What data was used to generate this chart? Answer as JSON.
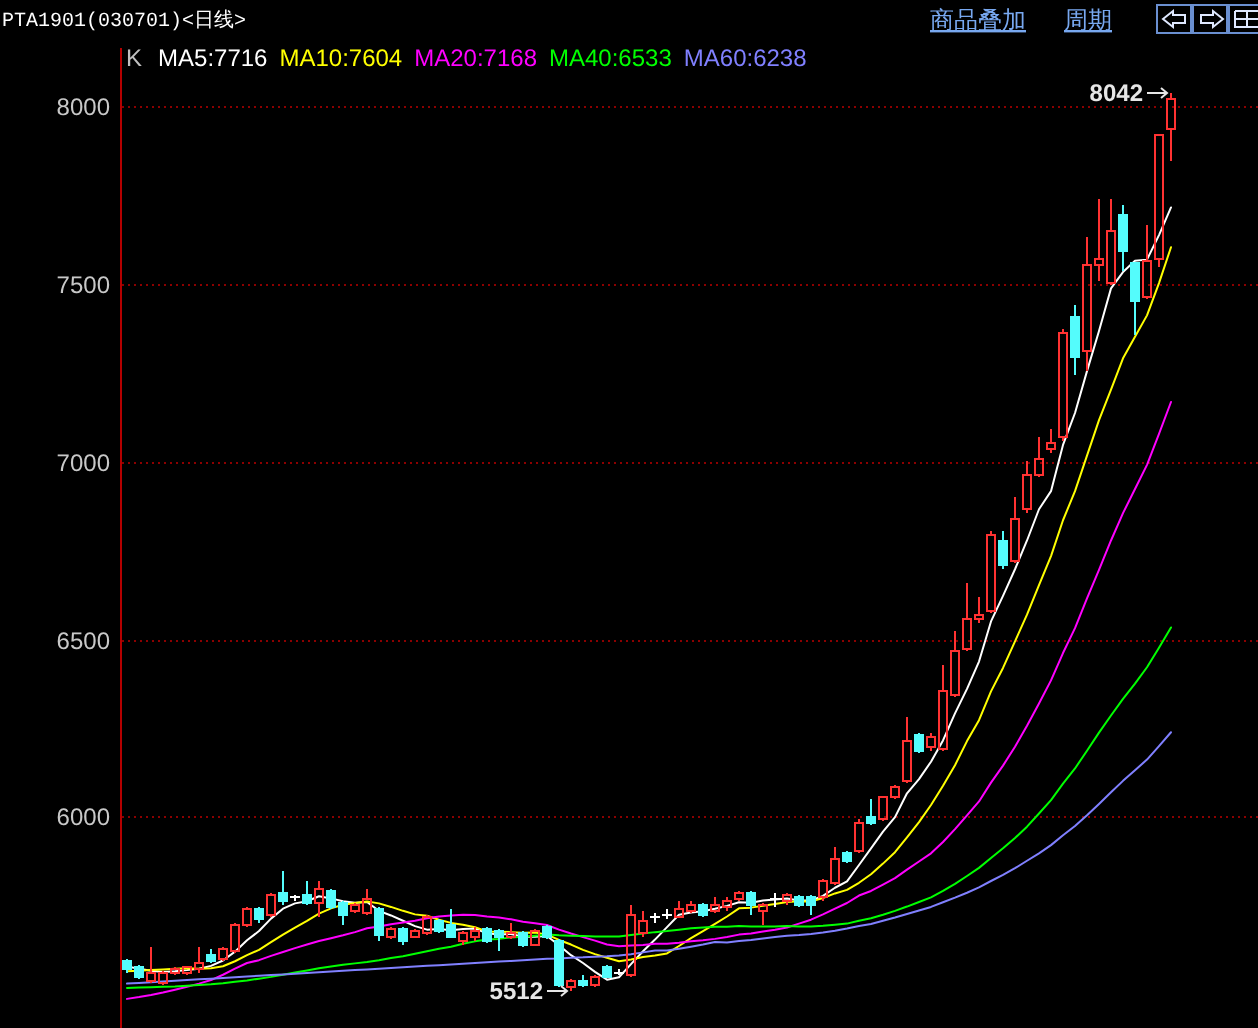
{
  "chart_data": {
    "type": "candlestick",
    "title": "PTA1901(030701)<日线>",
    "legend_title": "K",
    "categories": [
      null,
      null,
      null,
      null,
      null,
      null,
      null,
      null,
      null,
      null,
      null,
      null,
      null,
      null,
      null,
      null,
      null,
      null,
      null,
      null,
      null,
      null,
      null,
      null,
      null,
      null,
      null,
      null,
      null,
      null,
      null,
      null,
      null,
      null,
      null,
      null,
      null,
      null,
      null,
      null,
      null,
      null,
      null,
      null,
      null,
      null,
      null,
      null,
      null,
      null,
      null,
      null,
      null,
      null,
      null,
      null,
      null,
      null,
      null,
      null,
      null,
      null,
      null,
      null,
      null,
      null,
      null,
      null,
      null,
      null,
      null,
      null,
      null,
      null,
      null,
      null,
      null,
      null,
      null,
      null,
      null,
      null,
      null,
      null,
      null,
      null,
      null,
      null
    ],
    "series": [
      {
        "ohlc": [
          [
            5596,
            5600,
            5565,
            5573
          ],
          [
            5577,
            5583,
            5545,
            5549
          ],
          [
            5540,
            5634,
            5536,
            5564
          ],
          [
            5534,
            5568,
            5530,
            5562
          ],
          [
            5562,
            5577,
            5558,
            5573
          ],
          [
            5562,
            5581,
            5555,
            5577
          ],
          [
            5573,
            5634,
            5562,
            5592
          ],
          [
            5615,
            5628,
            5590,
            5596
          ],
          [
            5600,
            5634,
            5596,
            5628
          ],
          [
            5624,
            5705,
            5620,
            5699
          ],
          [
            5699,
            5746,
            5690,
            5741
          ],
          [
            5741,
            5746,
            5705,
            5714
          ],
          [
            5724,
            5789,
            5718,
            5784
          ],
          [
            5789,
            5849,
            5756,
            5765
          ],
          [
            5774,
            5780,
            5767,
            5774
          ],
          [
            5784,
            5821,
            5756,
            5761
          ],
          [
            5761,
            5821,
            5718,
            5797
          ],
          [
            5793,
            5797,
            5741,
            5746
          ],
          [
            5759,
            5765,
            5699,
            5727
          ],
          [
            5737,
            5761,
            5733,
            5756
          ],
          [
            5733,
            5797,
            5727,
            5771
          ],
          [
            5741,
            5746,
            5652,
            5667
          ],
          [
            5662,
            5690,
            5656,
            5684
          ],
          [
            5684,
            5690,
            5643,
            5652
          ],
          [
            5665,
            5684,
            5662,
            5680
          ],
          [
            5677,
            5724,
            5671,
            5718
          ],
          [
            5709,
            5714,
            5677,
            5680
          ],
          [
            5699,
            5741,
            5662,
            5665
          ],
          [
            5652,
            5680,
            5643,
            5677
          ],
          [
            5662,
            5690,
            5655,
            5682
          ],
          [
            5684,
            5690,
            5645,
            5652
          ],
          [
            5680,
            5684,
            5624,
            5662
          ],
          [
            5662,
            5705,
            5656,
            5677
          ],
          [
            5677,
            5680,
            5634,
            5639
          ],
          [
            5643,
            5684,
            5639,
            5680
          ],
          [
            5690,
            5699,
            5656,
            5662
          ],
          [
            5652,
            5656,
            5524,
            5530
          ],
          [
            5521,
            5545,
            5512,
            5540
          ],
          [
            5540,
            5558,
            5524,
            5530
          ],
          [
            5530,
            5558,
            5526,
            5553
          ],
          [
            5581,
            5586,
            5549,
            5553
          ],
          [
            5562,
            5573,
            5555,
            5562
          ],
          [
            5558,
            5752,
            5553,
            5727
          ],
          [
            5677,
            5737,
            5662,
            5709
          ],
          [
            5718,
            5733,
            5705,
            5718
          ],
          [
            5727,
            5741,
            5714,
            5727
          ],
          [
            5722,
            5765,
            5718,
            5741
          ],
          [
            5737,
            5765,
            5733,
            5756
          ],
          [
            5756,
            5761,
            5718,
            5727
          ],
          [
            5737,
            5774,
            5733,
            5756
          ],
          [
            5746,
            5774,
            5737,
            5765
          ],
          [
            5771,
            5793,
            5767,
            5789
          ],
          [
            5789,
            5793,
            5727,
            5752
          ],
          [
            5737,
            5761,
            5699,
            5756
          ],
          [
            5771,
            5789,
            5746,
            5771
          ],
          [
            5765,
            5789,
            5756,
            5784
          ],
          [
            5774,
            5780,
            5746,
            5756
          ],
          [
            5774,
            5780,
            5727,
            5752
          ],
          [
            5774,
            5830,
            5765,
            5821
          ],
          [
            5815,
            5915,
            5810,
            5885
          ],
          [
            5900,
            5905,
            5870,
            5877
          ],
          [
            5906,
            5995,
            5900,
            5986
          ],
          [
            6000,
            6050,
            5982,
            5986
          ],
          [
            5994,
            6060,
            5990,
            6056
          ],
          [
            6056,
            6095,
            6050,
            6088
          ],
          [
            6103,
            6281,
            6100,
            6215
          ],
          [
            6234,
            6240,
            6180,
            6187
          ],
          [
            6200,
            6240,
            6190,
            6230
          ],
          [
            6196,
            6431,
            6190,
            6356
          ],
          [
            6347,
            6525,
            6340,
            6469
          ],
          [
            6478,
            6662,
            6470,
            6557
          ],
          [
            6557,
            6619,
            6550,
            6572
          ],
          [
            6581,
            6807,
            6575,
            6797
          ],
          [
            6778,
            6807,
            6700,
            6713
          ],
          [
            6722,
            6901,
            6715,
            6844
          ],
          [
            6869,
            7004,
            6860,
            6966
          ],
          [
            6966,
            7075,
            6960,
            7008
          ],
          [
            7036,
            7094,
            7030,
            7054
          ],
          [
            7070,
            7379,
            7060,
            7364
          ],
          [
            7411,
            7445,
            7248,
            7295
          ],
          [
            7314,
            7638,
            7257,
            7554
          ],
          [
            7558,
            7740,
            7511,
            7573
          ],
          [
            7507,
            7740,
            7500,
            7655
          ],
          [
            7698,
            7726,
            7539,
            7595
          ],
          [
            7561,
            7565,
            7360,
            7454
          ],
          [
            7467,
            7670,
            7460,
            7567
          ],
          [
            7571,
            7925,
            7550,
            7920
          ],
          [
            7942,
            8042,
            7848,
            8023
          ]
        ],
        "colors": [
          "#54fcfc",
          "#54fcfc",
          "#ff3232",
          "#ff3232",
          "#ff3232",
          "#ff3232",
          "#ff3232",
          "#54fcfc",
          "#ff3232",
          "#ff3232",
          "#ff3232",
          "#54fcfc",
          "#ff3232",
          "#54fcfc",
          "#ffffff",
          "#54fcfc",
          "#ff3232",
          "#54fcfc",
          "#54fcfc",
          "#ff3232",
          "#ff3232",
          "#54fcfc",
          "#ff3232",
          "#54fcfc",
          "#ff3232",
          "#ff3232",
          "#54fcfc",
          "#54fcfc",
          "#ff3232",
          "#ff3232",
          "#54fcfc",
          "#54fcfc",
          "#ff3232",
          "#54fcfc",
          "#ff3232",
          "#54fcfc",
          "#54fcfc",
          "#ff3232",
          "#54fcfc",
          "#ff3232",
          "#54fcfc",
          "#ffffff",
          "#ff3232",
          "#ff3232",
          "#ffffff",
          "#ffffff",
          "#ff3232",
          "#ff3232",
          "#54fcfc",
          "#ff3232",
          "#ff3232",
          "#ff3232",
          "#54fcfc",
          "#ff3232",
          "#ffffff",
          "#ff3232",
          "#54fcfc",
          "#54fcfc",
          "#ff3232",
          "#ff3232",
          "#54fcfc",
          "#ff3232",
          "#54fcfc",
          "#ff3232",
          "#ff3232",
          "#ff3232",
          "#54fcfc",
          "#ff3232",
          "#ff3232",
          "#ff3232",
          "#ff3232",
          "#ff3232",
          "#ff3232",
          "#54fcfc",
          "#ff3232",
          "#ff3232",
          "#ff3232",
          "#ff3232",
          "#ff3232",
          "#54fcfc",
          "#ff3232",
          "#ff3232",
          "#ff3232",
          "#54fcfc",
          "#54fcfc",
          "#ff3232",
          "#ff3232",
          "#ff3232"
        ]
      },
      {
        "name": "MA5:7716",
        "type": "line",
        "color": "#ffffff",
        "values": [
          5578,
          5572,
          5566,
          5563,
          5565,
          5568,
          5572,
          5580,
          5595,
          5620,
          5652,
          5678,
          5713,
          5741,
          5756,
          5762,
          5776,
          5770,
          5762,
          5758,
          5760,
          5735,
          5722,
          5707,
          5692,
          5682,
          5684,
          5680,
          5684,
          5685,
          5672,
          5668,
          5670,
          5662,
          5662,
          5664,
          5638,
          5610,
          5588,
          5563,
          5541,
          5548,
          5585,
          5621,
          5654,
          5689,
          5724,
          5730,
          5734,
          5741,
          5749,
          5759,
          5758,
          5764,
          5767,
          5770,
          5764,
          5764,
          5777,
          5800,
          5818,
          5864,
          5911,
          5958,
          5999,
          6066,
          6106,
          6155,
          6215,
          6291,
          6360,
          6437,
          6550,
          6622,
          6697,
          6778,
          6866,
          6917,
          7047,
          7137,
          7255,
          7368,
          7488,
          7534,
          7566,
          7569,
          7638,
          7716
        ]
      },
      {
        "name": "MA10:7604",
        "type": "line",
        "color": "#ffff00",
        "values": [
          5565,
          5566,
          5568,
          5570,
          5572,
          5573,
          5572,
          5573,
          5579,
          5593,
          5610,
          5625,
          5647,
          5668,
          5688,
          5707,
          5727,
          5742,
          5752,
          5757,
          5761,
          5756,
          5746,
          5735,
          5725,
          5721,
          5710,
          5701,
          5696,
          5689,
          5677,
          5676,
          5675,
          5673,
          5674,
          5668,
          5653,
          5640,
          5625,
          5613,
          5603,
          5593,
          5598,
          5605,
          5609,
          5615,
          5636,
          5658,
          5678,
          5698,
          5719,
          5742,
          5744,
          5749,
          5754,
          5760,
          5762,
          5761,
          5771,
          5784,
          5794,
          5814,
          5838,
          5868,
          5900,
          5942,
          5985,
          6033,
          6087,
          6145,
          6213,
          6272,
          6353,
          6419,
          6494,
          6569,
          6652,
          6734,
          6835,
          6917,
          7017,
          7117,
          7203,
          7291,
          7352,
          7412,
          7503,
          7604
        ]
      },
      {
        "name": "MA20:7168",
        "type": "line",
        "color": "#ff00ff",
        "values": [
          5487,
          5492,
          5498,
          5505,
          5513,
          5521,
          5530,
          5540,
          5555,
          5572,
          5588,
          5596,
          5608,
          5619,
          5630,
          5640,
          5650,
          5658,
          5666,
          5675,
          5686,
          5691,
          5697,
          5702,
          5707,
          5714,
          5719,
          5722,
          5724,
          5723,
          5719,
          5716,
          5711,
          5704,
          5700,
          5695,
          5682,
          5671,
          5661,
          5651,
          5640,
          5635,
          5637,
          5639,
          5642,
          5642,
          5645,
          5649,
          5652,
          5656,
          5661,
          5668,
          5671,
          5677,
          5682,
          5688,
          5699,
          5710,
          5725,
          5741,
          5757,
          5778,
          5791,
          5809,
          5827,
          5851,
          5874,
          5897,
          5929,
          5965,
          6004,
          6043,
          6096,
          6144,
          6197,
          6256,
          6319,
          6384,
          6461,
          6531,
          6615,
          6695,
          6778,
          6855,
          6923,
          6991,
          7078,
          7168
        ]
      },
      {
        "name": "MA40:6533",
        "type": "line",
        "color": "#00ff00",
        "values": [
          5518,
          5519,
          5520,
          5521,
          5522,
          5524,
          5526,
          5528,
          5531,
          5535,
          5539,
          5544,
          5549,
          5555,
          5561,
          5567,
          5573,
          5578,
          5583,
          5587,
          5591,
          5596,
          5602,
          5607,
          5614,
          5621,
          5628,
          5634,
          5642,
          5649,
          5654,
          5656,
          5660,
          5662,
          5665,
          5668,
          5666,
          5665,
          5664,
          5663,
          5663,
          5663,
          5667,
          5671,
          5675,
          5678,
          5682,
          5686,
          5688,
          5690,
          5690,
          5692,
          5691,
          5691,
          5691,
          5692,
          5691,
          5691,
          5693,
          5696,
          5699,
          5707,
          5714,
          5724,
          5735,
          5747,
          5760,
          5773,
          5791,
          5811,
          5833,
          5856,
          5884,
          5911,
          5940,
          5972,
          6009,
          6047,
          6093,
          6136,
          6186,
          6237,
          6285,
          6332,
          6375,
          6421,
          6476,
          6533
        ]
      },
      {
        "name": "MA60:6238",
        "type": "line",
        "color": "#8080ff",
        "values": [
          5530,
          5532,
          5534,
          5536,
          5538,
          5540,
          5542,
          5544,
          5546,
          5548,
          5550,
          5552,
          5554,
          5556,
          5558,
          5560,
          5562,
          5564,
          5566,
          5568,
          5570,
          5572,
          5574,
          5576,
          5578,
          5580,
          5582,
          5584,
          5586,
          5588,
          5590,
          5592,
          5594,
          5596,
          5598,
          5600,
          5601,
          5603,
          5604,
          5606,
          5607,
          5609,
          5613,
          5618,
          5623,
          5623,
          5628,
          5634,
          5640,
          5647,
          5646,
          5650,
          5653,
          5657,
          5661,
          5665,
          5667,
          5670,
          5674,
          5679,
          5685,
          5692,
          5698,
          5707,
          5716,
          5726,
          5736,
          5746,
          5759,
          5772,
          5786,
          5801,
          5819,
          5836,
          5855,
          5876,
          5897,
          5920,
          5948,
          5974,
          6004,
          6036,
          6069,
          6101,
          6131,
          6161,
          6199,
          6238
        ]
      }
    ],
    "ylim": [
      5405,
      8165
    ],
    "yticks": [
      6000,
      6500,
      7000,
      7500,
      8000
    ],
    "grid": "y",
    "legend": "top left",
    "tick_labels": "y",
    "annotations": [
      "商品叠加",
      "周期",
      "8042",
      "5512"
    ]
  }
}
